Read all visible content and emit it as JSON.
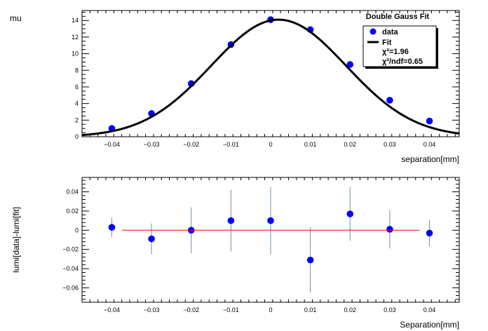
{
  "chart_data": [
    {
      "type": "scatter",
      "title": "Double Gauss Fit",
      "xlabel": "separation[mm]",
      "ylabel": "mu",
      "xlim": [
        -0.0475,
        0.0475
      ],
      "ylim": [
        0,
        15.2
      ],
      "x_ticks": [
        -0.04,
        -0.03,
        -0.02,
        -0.01,
        0,
        0.01,
        0.02,
        0.03,
        0.04
      ],
      "x_tick_labels": [
        "−0.04",
        "−0.03",
        "−0.02",
        "−0.01",
        "0",
        "0.01",
        "0.02",
        "0.03",
        "0.04"
      ],
      "y_ticks": [
        0,
        2,
        4,
        6,
        8,
        10,
        12,
        14
      ],
      "y_tick_labels": [
        "0",
        "2",
        "4",
        "6",
        "8",
        "10",
        "12",
        "14"
      ],
      "series": [
        {
          "name": "data",
          "type": "scatter",
          "color": "#0000ff",
          "x": [
            -0.04,
            -0.03,
            -0.02,
            -0.01,
            0,
            0.01,
            0.02,
            0.03,
            0.04
          ],
          "y": [
            1.0,
            2.8,
            6.4,
            11.1,
            14.1,
            12.9,
            8.7,
            4.4,
            1.9
          ]
        },
        {
          "name": "Fit",
          "type": "line",
          "color": "#000000",
          "model": "gauss",
          "amplitude": 14.1,
          "mean": 0.002,
          "sigma": 0.017
        }
      ],
      "legend": {
        "position": "top-right",
        "entries": [
          "data",
          "Fit"
        ],
        "chi2_label": "χ²=1.96",
        "chi2ndf_label": "χ²/ndf=0.65"
      },
      "grid": false
    },
    {
      "type": "scatter",
      "title": "",
      "xlabel": "Separation[mm]",
      "ylabel": "lumi[data]-lumi[fit]",
      "xlim": [
        -0.0475,
        0.0475
      ],
      "ylim": [
        -0.075,
        0.055
      ],
      "x_ticks": [
        -0.04,
        -0.03,
        -0.02,
        -0.01,
        0,
        0.01,
        0.02,
        0.03,
        0.04
      ],
      "x_tick_labels": [
        "−0.04",
        "−0.03",
        "−0.02",
        "−0.01",
        "0",
        "0.01",
        "0.02",
        "0.03",
        "0.04"
      ],
      "y_ticks": [
        -0.06,
        -0.04,
        -0.02,
        0,
        0.02,
        0.04
      ],
      "y_tick_labels": [
        "−0.06",
        "−0.04",
        "−0.02",
        "0",
        "0.02",
        "0.04"
      ],
      "series": [
        {
          "name": "residuals",
          "type": "scatter",
          "color": "#0000ff",
          "error_color": "#6e8fa8",
          "x": [
            -0.04,
            -0.03,
            -0.02,
            -0.01,
            0,
            0.01,
            0.02,
            0.03,
            0.04
          ],
          "y": [
            0.003,
            -0.009,
            0.0,
            0.01,
            0.01,
            -0.031,
            0.017,
            0.001,
            -0.003
          ],
          "y_err": [
            0.01,
            0.016,
            0.024,
            0.032,
            0.035,
            0.034,
            0.028,
            0.02,
            0.014
          ]
        },
        {
          "name": "zero-line",
          "type": "line",
          "color": "#ff0000",
          "x": [
            -0.0375,
            0.0375
          ],
          "y": [
            0,
            0
          ]
        }
      ],
      "grid": false
    }
  ]
}
